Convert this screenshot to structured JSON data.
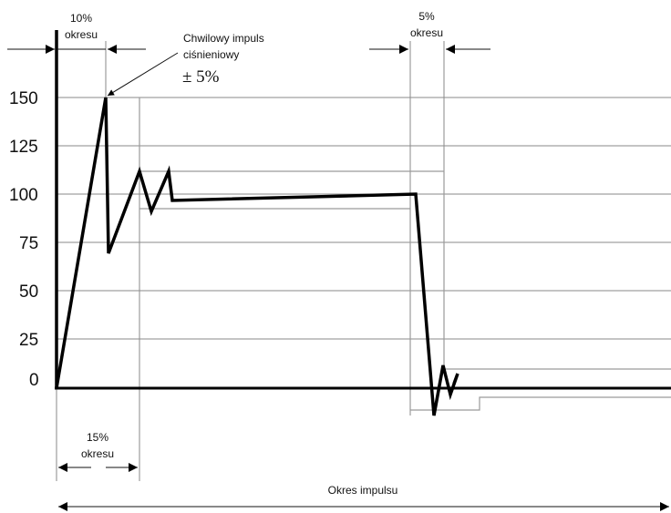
{
  "y_tick_labels": [
    "150",
    "125",
    "100",
    "75",
    "50",
    "25",
    "0"
  ],
  "annotations": {
    "ten_pct_line1": "10%",
    "ten_pct_line2": "okresu",
    "peak_line1": "Chwilowy impuls",
    "peak_line2": "ciśnieniowy",
    "tolerance": "± 5%",
    "five_pct_line1": "5%",
    "five_pct_line2": "okresu",
    "fifteen_pct_line1": "15%",
    "fifteen_pct_line2": "okresu",
    "period": "Okres impulsu"
  },
  "colors": {
    "curve": "#000000",
    "grid": "#8a8a8a",
    "tolerance_band": "#9a9a9a"
  }
}
